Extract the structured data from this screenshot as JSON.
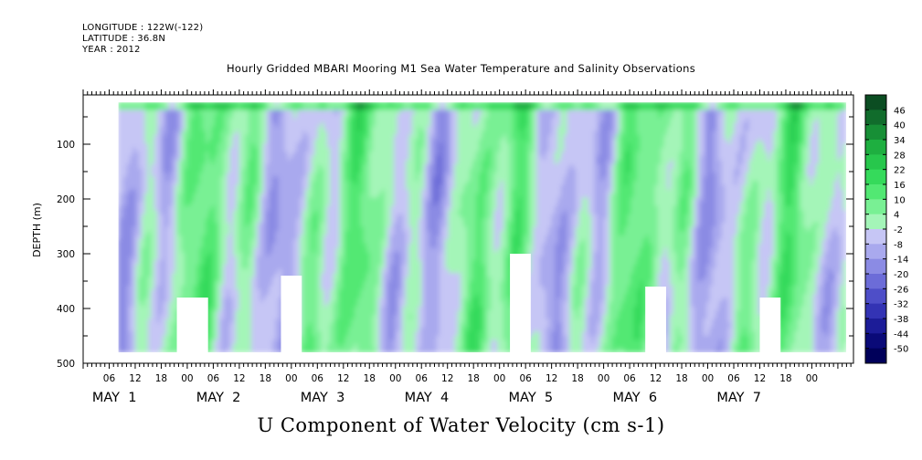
{
  "header": {
    "longitude": "LONGITUDE : 122W(-122)",
    "latitude": "LATITUDE : 36.8N",
    "year": "YEAR : 2012"
  },
  "chart_data": {
    "type": "heatmap",
    "title": "Hourly Gridded MBARI Mooring M1 Sea Water Temperature and Salinity Observations",
    "variable_title": "U Component of Water Velocity (cm s-1)",
    "ylabel": "DEPTH (m)",
    "y_axis": {
      "reversed": true,
      "ylim": [
        500,
        10
      ],
      "ticks": [
        100,
        200,
        300,
        400,
        500
      ]
    },
    "x_axis": {
      "hour_ticks": [
        "06",
        "12",
        "18",
        "00",
        "06",
        "12",
        "18",
        "00",
        "06",
        "12",
        "18",
        "00",
        "06",
        "12",
        "18",
        "00",
        "06",
        "12",
        "18",
        "00",
        "06",
        "12",
        "18",
        "00",
        "06",
        "12",
        "18",
        "00"
      ],
      "day_labels": [
        "MAY  1",
        "MAY  2",
        "MAY  3",
        "MAY  4",
        "MAY  5",
        "MAY  6",
        "MAY  7"
      ]
    },
    "colorbar": {
      "labels": [
        "46",
        "40",
        "34",
        "28",
        "22",
        "16",
        "10",
        "4",
        "-2",
        "-8",
        "-14",
        "-20",
        "-26",
        "-32",
        "-38",
        "-44",
        "-50"
      ],
      "colors": [
        "#0b4d22",
        "#116c2c",
        "#178f36",
        "#1eaf40",
        "#27c74c",
        "#35da5b",
        "#52e873",
        "#79f094",
        "#a4f5b8",
        "#c6c6f5",
        "#a9a9ee",
        "#8b8be4",
        "#6c6cd8",
        "#4e4ec8",
        "#3333b4",
        "#1c1c98",
        "#0a0a78",
        "#00005a"
      ]
    },
    "description_values": {
      "dominant_pattern": "alternating vertical bands of positive (green) and negative (blue) U velocity over May 1-7, 2012",
      "value_range": [
        -20,
        28
      ]
    }
  }
}
